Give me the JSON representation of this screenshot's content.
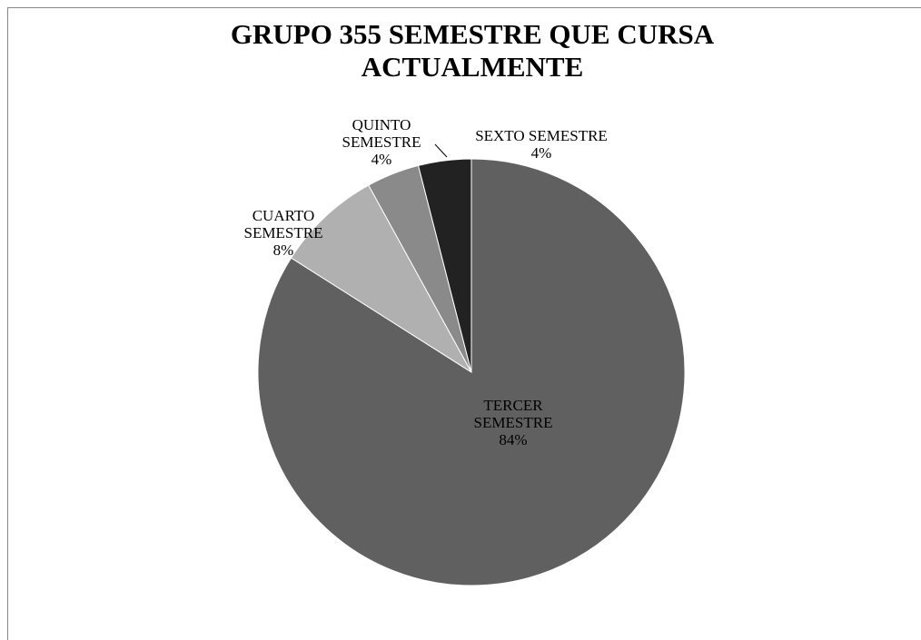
{
  "chart_data": {
    "type": "pie",
    "title": "GRUPO 355 SEMESTRE QUE CURSA ACTUALMENTE",
    "categories": [
      "TERCER SEMESTRE",
      "CUARTO SEMESTRE",
      "QUINTO SEMESTRE",
      "SEXTO SEMESTRE"
    ],
    "values": [
      84,
      8,
      4,
      4
    ],
    "value_labels": [
      "84%",
      "8%",
      "4%",
      "4%"
    ],
    "colors": [
      "#606060",
      "#b0b0b0",
      "#8a8a8a",
      "#222222"
    ]
  }
}
